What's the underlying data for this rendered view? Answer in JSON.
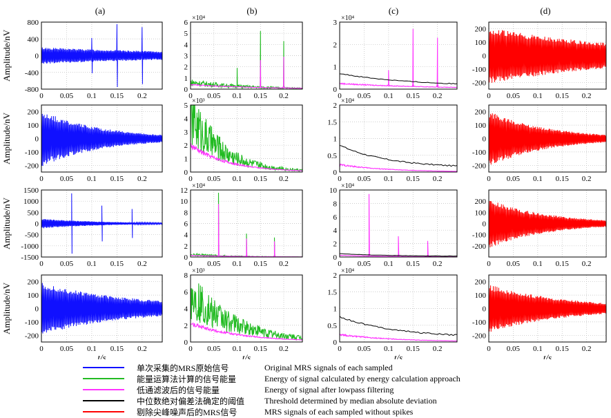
{
  "columns": [
    "(a)",
    "(b)",
    "(c)",
    "(d)"
  ],
  "ylabel_a": "Amplitude/nV",
  "xlabel": "t/s",
  "legend": [
    {
      "zh": "单次采集的MRS原始信号",
      "en": "Original MRS signals of each sampled",
      "color": "#1010ff"
    },
    {
      "zh": "能量运算法计算的信号能量",
      "en": "Energy of signal calculated by energy calculation approach",
      "color": "#22bb22"
    },
    {
      "zh": "低通滤波后的信号能量",
      "en": "Energy of signal after lowpass filtering",
      "color": "#ff33ff"
    },
    {
      "zh": "中位数绝对偏差法确定的阈值",
      "en": "Threshold determined by median absolute deviation",
      "color": "#000000"
    },
    {
      "zh": "剔除尖峰噪声后的MRS信号",
      "en": "MRS signals of each sampled without spikes",
      "color": "#ff0000"
    }
  ],
  "chart_data": [
    {
      "type": "line",
      "panel": "a1",
      "ylabel": "Amplitude/nV",
      "x": {
        "range": [
          0,
          0.24
        ],
        "ticks": [
          "0",
          "0.05",
          "0.1",
          "0.15",
          "0.2"
        ]
      },
      "y": {
        "range": [
          -800,
          800
        ],
        "ticks": [
          "800",
          "400",
          "0",
          "-400",
          "-800"
        ]
      },
      "series": [
        {
          "name": "Original MRS signals of each sampled",
          "kind": "decay",
          "amp0": 200,
          "tau": 0.35,
          "spikes": [
            [
              0.1,
              420
            ],
            [
              0.15,
              750
            ],
            [
              0.2,
              680
            ]
          ]
        }
      ]
    },
    {
      "type": "line",
      "panel": "b1",
      "x": {
        "range": [
          0,
          0.24
        ],
        "ticks": [
          "0",
          "0.05",
          "0.1",
          "0.15",
          "0.2"
        ]
      },
      "y": {
        "range": [
          0,
          6
        ],
        "ticks": [
          "6",
          "5",
          "4",
          "3",
          "2",
          "1",
          "0"
        ],
        "exp": "×10⁴"
      },
      "series": [
        {
          "name": "Energy of signal calculated by energy calculation approach",
          "kind": "energy",
          "amp0": 0.6,
          "tau": 0.12,
          "spikes": [
            [
              0.1,
              1.9
            ],
            [
              0.15,
              5.2
            ],
            [
              0.2,
              4.3
            ]
          ]
        },
        {
          "name": "Energy of signal after lowpass filtering",
          "kind": "smooth",
          "amp0": 0.4,
          "tau": 0.15,
          "spikes": [
            [
              0.15,
              2.6
            ],
            [
              0.2,
              2.9
            ]
          ]
        }
      ]
    },
    {
      "type": "line",
      "panel": "c1",
      "x": {
        "range": [
          0,
          0.24
        ],
        "ticks": [
          "0",
          "0.05",
          "0.1",
          "0.15",
          "0.2"
        ]
      },
      "y": {
        "range": [
          0,
          3
        ],
        "ticks": [
          "3",
          "2",
          "1",
          "0"
        ],
        "exp": "×10⁴"
      },
      "series": [
        {
          "name": "Energy of signal after lowpass filtering",
          "kind": "smooth",
          "amp0": 0.25,
          "tau": 0.2,
          "spikes": [
            [
              0.1,
              0.85
            ],
            [
              0.15,
              2.7
            ],
            [
              0.2,
              2.3
            ]
          ]
        },
        {
          "name": "Threshold determined by median absolute deviation",
          "kind": "thresh",
          "amp0": 0.7,
          "tau": 0.15,
          "floor": 0.12
        }
      ]
    },
    {
      "type": "line",
      "panel": "d1",
      "x": {
        "range": [
          0,
          0.24
        ],
        "ticks": [
          "0",
          "0.05",
          "0.1",
          "0.15",
          "0.2"
        ]
      },
      "y": {
        "range": [
          -250,
          250
        ],
        "ticks": [
          "200",
          "100",
          "0",
          "-100",
          "-200"
        ]
      },
      "series": [
        {
          "name": "MRS signals of each sampled without spikes",
          "kind": "decay",
          "amp0": 210,
          "tau": 0.3
        }
      ]
    },
    {
      "type": "line",
      "panel": "a2",
      "ylabel": "Amplitude/nV",
      "x": {
        "range": [
          0,
          0.24
        ],
        "ticks": [
          "0",
          "0.05",
          "0.1",
          "0.15",
          "0.2"
        ]
      },
      "y": {
        "range": [
          -250,
          250
        ],
        "ticks": [
          "200",
          "100",
          "0",
          "-100",
          "-200"
        ]
      },
      "series": [
        {
          "name": "Original MRS signals of each sampled",
          "kind": "decay",
          "amp0": 210,
          "tau": 0.12
        }
      ]
    },
    {
      "type": "line",
      "panel": "b2",
      "x": {
        "range": [
          0,
          0.24
        ],
        "ticks": [
          "0",
          "0.05",
          "0.1",
          "0.15",
          "0.2"
        ]
      },
      "y": {
        "range": [
          0,
          5
        ],
        "ticks": [
          "5",
          "4",
          "3",
          "2",
          "1",
          "0"
        ],
        "exp": "×10³"
      },
      "series": [
        {
          "name": "Energy of signal calculated by energy calculation approach",
          "kind": "energy",
          "amp0": 4.2,
          "tau": 0.07
        },
        {
          "name": "Energy of signal after lowpass filtering",
          "kind": "smooth",
          "amp0": 2.0,
          "tau": 0.08
        }
      ]
    },
    {
      "type": "line",
      "panel": "c2",
      "x": {
        "range": [
          0,
          0.24
        ],
        "ticks": [
          "0",
          "0.05",
          "0.1",
          "0.15",
          "0.2"
        ]
      },
      "y": {
        "range": [
          0,
          2
        ],
        "ticks": [
          "2",
          "1.5",
          "1",
          "0.5",
          "0"
        ],
        "exp": "×10⁴"
      },
      "series": [
        {
          "name": "Energy of signal after lowpass filtering",
          "kind": "smooth",
          "amp0": 0.22,
          "tau": 0.1
        },
        {
          "name": "Threshold determined by median absolute deviation",
          "kind": "thresh",
          "amp0": 0.8,
          "tau": 0.1,
          "floor": 0.12
        }
      ]
    },
    {
      "type": "line",
      "panel": "d2",
      "x": {
        "range": [
          0,
          0.24
        ],
        "ticks": [
          "0",
          "0.05",
          "0.1",
          "0.15",
          "0.2"
        ]
      },
      "y": {
        "range": [
          -250,
          250
        ],
        "ticks": [
          "200",
          "100",
          "0",
          "-100",
          "-200"
        ]
      },
      "series": [
        {
          "name": "MRS signals of each sampled without spikes",
          "kind": "decay",
          "amp0": 210,
          "tau": 0.12
        }
      ]
    },
    {
      "type": "line",
      "panel": "a3",
      "ylabel": "Amplitude/nV",
      "x": {
        "range": [
          0,
          0.24
        ],
        "ticks": [
          "0",
          "0.05",
          "0.1",
          "0.15",
          "0.2"
        ]
      },
      "y": {
        "range": [
          -1500,
          1500
        ],
        "ticks": [
          "1500",
          "1000",
          "500",
          "0",
          "-500",
          "-1000",
          "-1500"
        ]
      },
      "series": [
        {
          "name": "Original MRS signals of each sampled",
          "kind": "decay",
          "amp0": 220,
          "tau": 0.12,
          "spikes": [
            [
              0.06,
              1350
            ],
            [
              0.12,
              800
            ],
            [
              0.18,
              650
            ]
          ]
        }
      ]
    },
    {
      "type": "line",
      "panel": "b3",
      "x": {
        "range": [
          0,
          0.24
        ],
        "ticks": [
          "0",
          "0.05",
          "0.1",
          "0.15",
          "0.2"
        ]
      },
      "y": {
        "range": [
          0,
          12
        ],
        "ticks": [
          "12",
          "10",
          "8",
          "6",
          "4",
          "2",
          "0"
        ],
        "exp": "×10⁴"
      },
      "series": [
        {
          "name": "Energy of signal calculated by energy calculation approach",
          "kind": "energy",
          "amp0": 0.5,
          "tau": 0.08,
          "spikes": [
            [
              0.06,
              11.5
            ],
            [
              0.12,
              4.2
            ],
            [
              0.18,
              3.5
            ]
          ]
        },
        {
          "name": "Energy of signal after lowpass filtering",
          "kind": "smooth",
          "amp0": 0.3,
          "tau": 0.1,
          "spikes": [
            [
              0.06,
              9.5
            ],
            [
              0.12,
              3.3
            ],
            [
              0.18,
              2.8
            ]
          ]
        }
      ]
    },
    {
      "type": "line",
      "panel": "c3",
      "x": {
        "range": [
          0,
          0.24
        ],
        "ticks": [
          "0",
          "0.05",
          "0.1",
          "0.15",
          "0.2"
        ]
      },
      "y": {
        "range": [
          0,
          10
        ],
        "ticks": [
          "10",
          "8",
          "6",
          "4",
          "2",
          "0"
        ],
        "exp": "×10⁴"
      },
      "series": [
        {
          "name": "Energy of signal after lowpass filtering",
          "kind": "smooth",
          "amp0": 0.25,
          "tau": 0.1,
          "spikes": [
            [
              0.06,
              9.4
            ],
            [
              0.12,
              3.1
            ],
            [
              0.18,
              2.4
            ]
          ]
        },
        {
          "name": "Threshold determined by median absolute deviation",
          "kind": "thresh",
          "amp0": 0.5,
          "tau": 0.1,
          "floor": 0.1
        }
      ]
    },
    {
      "type": "line",
      "panel": "d3",
      "x": {
        "range": [
          0,
          0.24
        ],
        "ticks": [
          "0",
          "0.05",
          "0.1",
          "0.15",
          "0.2"
        ]
      },
      "y": {
        "range": [
          -300,
          300
        ],
        "ticks": [
          "200",
          "100",
          "0",
          "-100",
          "-200"
        ]
      },
      "series": [
        {
          "name": "MRS signals of each sampled without spikes",
          "kind": "decay",
          "amp0": 220,
          "tau": 0.12
        }
      ]
    },
    {
      "type": "line",
      "panel": "a4",
      "ylabel": "Amplitude/nV",
      "x": {
        "range": [
          0,
          0.24
        ],
        "ticks": [
          "0",
          "0.05",
          "0.1",
          "0.15",
          "0.2"
        ]
      },
      "y": {
        "range": [
          -250,
          250
        ],
        "ticks": [
          "200",
          "100",
          "0",
          "-100",
          "-200"
        ]
      },
      "series": [
        {
          "name": "Original MRS signals of each sampled",
          "kind": "decay",
          "amp0": 180,
          "tau": 0.16,
          "noise": 30
        }
      ]
    },
    {
      "type": "line",
      "panel": "b4",
      "x": {
        "range": [
          0,
          0.24
        ],
        "ticks": [
          "0",
          "0.05",
          "0.1",
          "0.15",
          "0.2"
        ]
      },
      "y": {
        "range": [
          0,
          8
        ],
        "ticks": [
          "8",
          "6",
          "4",
          "2",
          "0"
        ],
        "exp": "×10³"
      },
      "series": [
        {
          "name": "Energy of signal calculated by energy calculation approach",
          "kind": "energy",
          "amp0": 5.5,
          "tau": 0.1
        },
        {
          "name": "Energy of signal after lowpass filtering",
          "kind": "smooth",
          "amp0": 2.2,
          "tau": 0.11
        }
      ]
    },
    {
      "type": "line",
      "panel": "c4",
      "x": {
        "range": [
          0,
          0.24
        ],
        "ticks": [
          "0",
          "0.05",
          "0.1",
          "0.15",
          "0.2"
        ]
      },
      "y": {
        "range": [
          0,
          2
        ],
        "ticks": [
          "2",
          "1.5",
          "1",
          "0.5",
          "0"
        ],
        "exp": "×10⁴"
      },
      "series": [
        {
          "name": "Energy of signal after lowpass filtering",
          "kind": "smooth",
          "amp0": 0.22,
          "tau": 0.12
        },
        {
          "name": "Threshold determined by median absolute deviation",
          "kind": "thresh",
          "amp0": 0.75,
          "tau": 0.12,
          "floor": 0.12
        }
      ]
    },
    {
      "type": "line",
      "panel": "d4",
      "x": {
        "range": [
          0,
          0.24
        ],
        "ticks": [
          "0",
          "0.05",
          "0.1",
          "0.15",
          "0.2"
        ]
      },
      "y": {
        "range": [
          -250,
          250
        ],
        "ticks": [
          "200",
          "100",
          "0",
          "-100",
          "-200"
        ]
      },
      "series": [
        {
          "name": "MRS signals of each sampled without spikes",
          "kind": "decay",
          "amp0": 180,
          "tau": 0.16
        }
      ]
    }
  ]
}
